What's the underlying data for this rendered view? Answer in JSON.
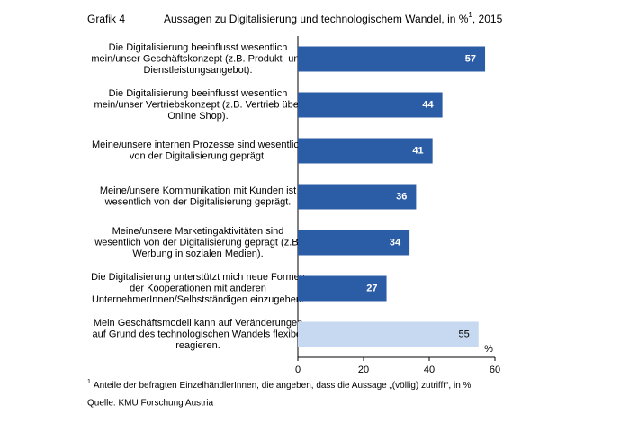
{
  "chart_data": {
    "type": "hbar",
    "label": "Grafik 4",
    "title": "Aussagen zu Digitalisierung und technologischem Wandel, in %",
    "title_footnote_mark": "1",
    "title_suffix": ", 2015",
    "categories": [
      [
        "Die Digitalisierung beeinflusst wesentlich",
        "mein/unser Geschäftskonzept (z.B. Produkt- und",
        "Dienstleistungsangebot)."
      ],
      [
        "Die Digitalisierung beeinflusst wesentlich",
        "mein/unser Vertriebskonzept (z.B. Vertrieb über",
        "Online Shop)."
      ],
      [
        "Meine/unsere internen Prozesse sind wesentlich",
        "von der Digitalisierung geprägt."
      ],
      [
        "Meine/unsere Kommunikation mit Kunden ist",
        "wesentlich von der Digitalisierung geprägt."
      ],
      [
        "Meine/unsere Marketingaktivitäten sind",
        "wesentlich von der Digitalisierung geprägt (z.B.",
        "Werbung in sozialen Medien)."
      ],
      [
        "Die Digitalisierung unterstützt mich neue Formen",
        "der Kooperationen mit anderen",
        "UnternehmerInnen/Selbstständigen einzugehen."
      ],
      [
        "Mein Geschäftsmodell kann auf Veränderungen",
        "auf Grund des technologischen Wandels flexibel",
        "reagieren."
      ]
    ],
    "values": [
      57,
      44,
      41,
      36,
      34,
      27,
      55
    ],
    "colors": [
      "#2b5ca6",
      "#2b5ca6",
      "#2b5ca6",
      "#2b5ca6",
      "#2b5ca6",
      "#2b5ca6",
      "#c6d9f0"
    ],
    "xlim": [
      0,
      60
    ],
    "xticks": [
      0,
      20,
      40,
      60
    ],
    "x_unit": "%",
    "footnote_mark": "1",
    "footnote": "Anteile der befragten EinzelhändlerInnen, die angeben, dass die Aussage „(völlig) zutrifft“, in %",
    "source": "Quelle: KMU Forschung Austria"
  }
}
